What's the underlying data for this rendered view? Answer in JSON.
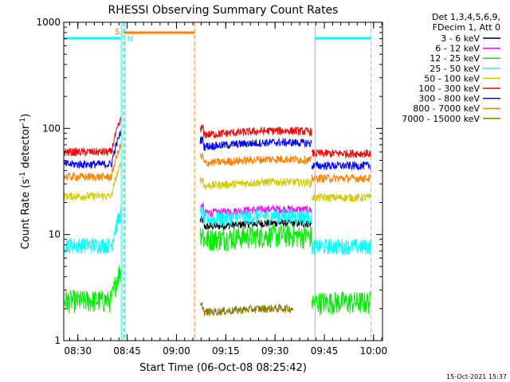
{
  "chart_data": {
    "type": "line",
    "title": "RHESSI Observing Summary Count Rates",
    "xlabel": "Start Time (06-Oct-08 08:25:42)",
    "ylabel_main": "Count Rate (s",
    "ylabel_sup1": "-1",
    "ylabel_mid": " detector",
    "ylabel_sup2": "-1",
    "ylabel_end": ")",
    "yscale": "log",
    "ylim": [
      1,
      1000
    ],
    "xlim_minutes": [
      0,
      97
    ],
    "yticks": [
      {
        "value": 1,
        "label": "1"
      },
      {
        "value": 10,
        "label": "10"
      },
      {
        "value": 100,
        "label": "100"
      },
      {
        "value": 1000,
        "label": "1000"
      }
    ],
    "xticks": [
      {
        "value": 4.3,
        "label": "08:30"
      },
      {
        "value": 19.3,
        "label": "08:45"
      },
      {
        "value": 34.3,
        "label": "09:00"
      },
      {
        "value": 49.3,
        "label": "09:15"
      },
      {
        "value": 64.3,
        "label": "09:30"
      },
      {
        "value": 79.3,
        "label": "09:45"
      },
      {
        "value": 94.3,
        "label": "10:00"
      }
    ],
    "legend_header": [
      "Det 1,3,4,5,6,9,",
      "FDecim 1, Att 0"
    ],
    "series": [
      {
        "name": "3 - 6 keV",
        "color": "#000000",
        "pre": 0,
        "post": 11.5
      },
      {
        "name": "6 - 12 keV",
        "color": "#ff00ff",
        "pre": 0,
        "post": 15.5
      },
      {
        "name": "12 - 25 keV",
        "color": "#00ee00",
        "pre": 2.4,
        "post": 8.8
      },
      {
        "name": "25 - 50 keV",
        "color": "#00ffff",
        "pre": 8.0,
        "post": 13.5
      },
      {
        "name": "50 - 100 keV",
        "color": "#d4c800",
        "pre": 23,
        "post": 28
      },
      {
        "name": "100 - 300 keV",
        "color": "#ff0000",
        "pre": 60,
        "post": 85
      },
      {
        "name": "300 - 800 keV",
        "color": "#0000ff",
        "pre": 46,
        "post": 66
      },
      {
        "name": "800 - 7000 keV",
        "color": "#ff7f00",
        "pre": 35,
        "post": 46
      },
      {
        "name": "7000 - 15000 keV",
        "color": "#8b7a00",
        "pre": 0,
        "post": 1.8
      }
    ],
    "annotations": [
      {
        "text": "S",
        "color": "#ff7f00"
      },
      {
        "text": "N",
        "color": "#00ffff"
      }
    ],
    "footer": "15-Oct-2021 15:37"
  }
}
